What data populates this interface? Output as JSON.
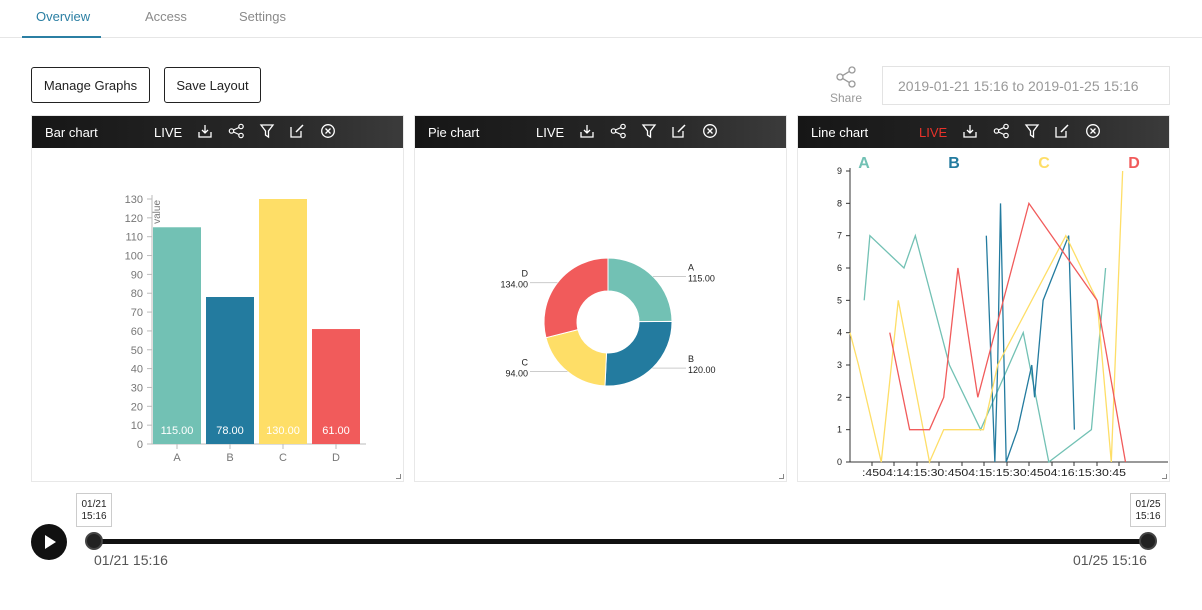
{
  "tabs": [
    {
      "label": "Overview",
      "active": true
    },
    {
      "label": "Access",
      "active": false
    },
    {
      "label": "Settings",
      "active": false
    }
  ],
  "toolbar": {
    "manage_label": "Manage Graphs",
    "save_layout_label": "Save Layout",
    "share_label": "Share",
    "date_range": "2019-01-21 15:16 to 2019-01-25 15:16"
  },
  "panels": [
    {
      "title": "Bar chart",
      "live": "LIVE",
      "live_color": "#ffffff"
    },
    {
      "title": "Pie chart",
      "live": "LIVE",
      "live_color": "#ffffff"
    },
    {
      "title": "Line chart",
      "live": "LIVE",
      "live_color": "#e8322a"
    }
  ],
  "header_icons": [
    "download-icon",
    "share-icon",
    "filter-icon",
    "edit-icon",
    "close-icon"
  ],
  "colors": {
    "A": "#72c1b4",
    "B": "#237b9f",
    "C": "#fede67",
    "D": "#f15b5b"
  },
  "chart_data": [
    {
      "type": "bar",
      "title": "Bar chart",
      "categories": [
        "A",
        "B",
        "C",
        "D"
      ],
      "values": [
        115,
        78,
        130,
        61
      ],
      "value_labels": [
        "115.00",
        "78.00",
        "130.00",
        "61.00"
      ],
      "ylabel": "value",
      "ylim": [
        0,
        130
      ],
      "yticks": [
        0,
        10,
        20,
        30,
        40,
        50,
        60,
        70,
        80,
        90,
        100,
        110,
        120,
        130
      ]
    },
    {
      "type": "pie",
      "title": "Pie chart",
      "slices": [
        {
          "label": "A",
          "value": 115,
          "value_label": "115.00"
        },
        {
          "label": "B",
          "value": 120,
          "value_label": "120.00"
        },
        {
          "label": "C",
          "value": 94,
          "value_label": "94.00"
        },
        {
          "label": "D",
          "value": 134,
          "value_label": "134.00"
        }
      ]
    },
    {
      "type": "line",
      "title": "Line chart",
      "ylim": [
        0,
        9
      ],
      "yticks": [
        0,
        1,
        2,
        3,
        4,
        5,
        6,
        7,
        8,
        9
      ],
      "xlim": [
        0,
        100
      ],
      "xtick_labels": [
        ":45",
        "04:14:15",
        ":30",
        ":45",
        "04:15:15",
        ":30",
        ":45",
        "04:16:15",
        ":30",
        ":45"
      ],
      "legend": [
        "A",
        "B",
        "C",
        "D"
      ],
      "series": [
        {
          "name": "A",
          "points": [
            [
              5,
              5
            ],
            [
              7,
              7
            ],
            [
              19,
              6
            ],
            [
              23,
              7
            ],
            [
              35,
              3
            ],
            [
              46,
              1
            ],
            [
              61,
              4
            ],
            [
              70,
              0
            ],
            [
              85,
              1
            ],
            [
              90,
              6
            ]
          ]
        },
        {
          "name": "B",
          "points": [
            [
              48,
              7
            ],
            [
              51,
              0
            ],
            [
              52,
              3
            ],
            [
              53,
              8
            ],
            [
              55,
              0
            ],
            [
              59,
              1
            ],
            [
              64,
              3
            ],
            [
              65,
              2
            ],
            [
              68,
              5
            ],
            [
              77,
              7
            ],
            [
              79,
              1
            ]
          ]
        },
        {
          "name": "C",
          "points": [
            [
              0,
              4
            ],
            [
              3,
              3
            ],
            [
              11,
              0
            ],
            [
              17,
              5
            ],
            [
              28,
              0
            ],
            [
              33,
              1
            ],
            [
              47,
              1
            ],
            [
              52,
              3
            ],
            [
              76,
              7
            ],
            [
              87,
              5
            ],
            [
              92,
              0
            ],
            [
              96,
              9
            ]
          ]
        },
        {
          "name": "D",
          "points": [
            [
              14,
              4
            ],
            [
              21,
              1
            ],
            [
              28,
              1
            ],
            [
              33,
              2
            ],
            [
              38,
              6
            ],
            [
              45,
              2
            ],
            [
              63,
              8
            ],
            [
              87,
              5
            ],
            [
              97,
              0
            ]
          ]
        }
      ]
    }
  ],
  "timeline": {
    "start_box": "01/21\n15:16",
    "end_box": "01/25\n15:16",
    "start_label": "01/21 15:16",
    "end_label": "01/25 15:16",
    "progress": 1.0
  }
}
